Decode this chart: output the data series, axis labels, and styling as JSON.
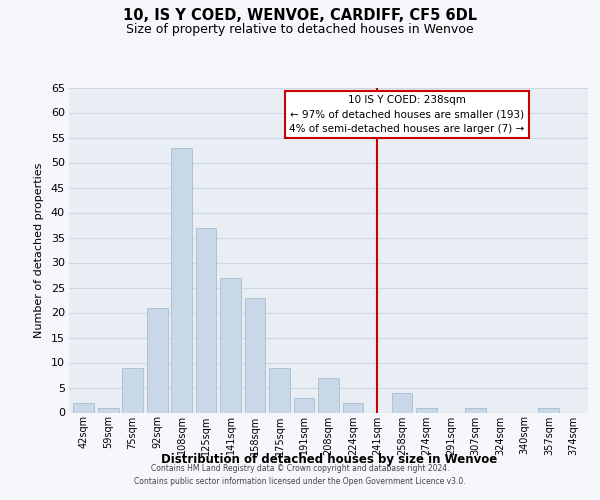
{
  "title": "10, IS Y COED, WENVOE, CARDIFF, CF5 6DL",
  "subtitle": "Size of property relative to detached houses in Wenvoe",
  "xlabel": "Distribution of detached houses by size in Wenvoe",
  "ylabel": "Number of detached properties",
  "bar_color": "#c8d8e8",
  "bar_edge_color": "#a8bece",
  "background_color": "#e8eef4",
  "grid_color": "#cdd8e2",
  "fig_bg_color": "#f5f7fa",
  "categories": [
    "42sqm",
    "59sqm",
    "75sqm",
    "92sqm",
    "108sqm",
    "125sqm",
    "141sqm",
    "158sqm",
    "175sqm",
    "191sqm",
    "208sqm",
    "224sqm",
    "241sqm",
    "258sqm",
    "274sqm",
    "291sqm",
    "307sqm",
    "324sqm",
    "340sqm",
    "357sqm",
    "374sqm"
  ],
  "values": [
    2,
    1,
    9,
    21,
    53,
    37,
    27,
    23,
    9,
    3,
    7,
    2,
    0,
    4,
    1,
    0,
    1,
    0,
    0,
    1,
    0
  ],
  "ylim": [
    0,
    65
  ],
  "yticks": [
    0,
    5,
    10,
    15,
    20,
    25,
    30,
    35,
    40,
    45,
    50,
    55,
    60,
    65
  ],
  "vline_x_index": 12,
  "vline_color": "#cc0000",
  "annotation_title": "10 IS Y COED: 238sqm",
  "annotation_line1": "← 97% of detached houses are smaller (193)",
  "annotation_line2": "4% of semi-detached houses are larger (7) →",
  "annotation_box_color": "#ffffff",
  "annotation_box_edge": "#cc0000",
  "footer_line1": "Contains HM Land Registry data © Crown copyright and database right 2024.",
  "footer_line2": "Contains public sector information licensed under the Open Government Licence v3.0."
}
